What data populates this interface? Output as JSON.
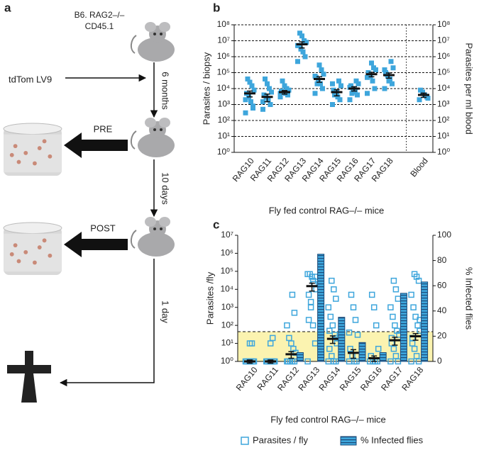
{
  "panels": [
    "a",
    "b",
    "c"
  ],
  "diagram": {
    "mouse_label": [
      "B6. RAG2–/–",
      "CD45.1"
    ],
    "infection": "tdTom LV9",
    "steps": [
      "6 months",
      "10 days",
      "1 day"
    ],
    "feeds": [
      "PRE",
      "POST"
    ]
  },
  "chart_data": [
    {
      "type": "strip",
      "y_label": "Parasites / biopsy",
      "y2_label": "Parasites per ml blood",
      "x_label": "Fly fed control RAG–/– mice",
      "categories": [
        "RAG10",
        "RAG11",
        "RAG12",
        "RAG13",
        "RAG14",
        "RAG15",
        "RAG16",
        "RAG17",
        "RAG18",
        "Blood"
      ],
      "points": [
        [
          300,
          800,
          1500,
          3000,
          5000,
          8000,
          15000,
          25000,
          40000,
          2000,
          600
        ],
        [
          500,
          1000,
          2000,
          3000,
          4000,
          6000,
          10000,
          20000,
          40000,
          1500
        ],
        [
          3000,
          4000,
          5000,
          6000,
          7000,
          8000,
          10000,
          15000,
          30000,
          5000
        ],
        [
          500000,
          1000000,
          2000000,
          3000000,
          5000000,
          8000000,
          10000000,
          20000000,
          30000000,
          5000000,
          1000000
        ],
        [
          5000,
          10000,
          20000,
          30000,
          50000,
          80000,
          150000,
          300000,
          20000,
          60000
        ],
        [
          1000,
          2000,
          3000,
          5000,
          8000,
          15000,
          30000,
          6000,
          4000,
          20000
        ],
        [
          2000,
          4000,
          6000,
          10000,
          15000,
          20000,
          30000,
          8000,
          5000,
          12000
        ],
        [
          5000,
          10000,
          30000,
          60000,
          100000,
          150000,
          200000,
          400000,
          80000,
          50000
        ],
        [
          10000,
          20000,
          40000,
          60000,
          100000,
          200000,
          500000,
          30000,
          80000,
          150000
        ],
        [
          2000,
          3000,
          4000,
          6000,
          8000,
          2500
        ]
      ],
      "means": [
        5000,
        3000,
        6000,
        6000000,
        40000,
        6000,
        10000,
        80000,
        70000,
        4000
      ],
      "errors": [
        2000,
        1500,
        1500,
        2500000,
        15000,
        2500,
        3000,
        25000,
        25000,
        1200
      ],
      "color": "#3ea6dc",
      "log_y": true,
      "log_y2": true,
      "grid": true,
      "ylim": [
        1,
        100000000
      ],
      "yticks": [
        {
          "value": 1,
          "label": "10⁰"
        },
        {
          "value": 10,
          "label": "10¹"
        },
        {
          "value": 100,
          "label": "10²"
        },
        {
          "value": 1000,
          "label": "10³"
        },
        {
          "value": 10000,
          "label": "10⁴"
        },
        {
          "value": 100000,
          "label": "10⁵"
        },
        {
          "value": 1000000,
          "label": "10⁶"
        },
        {
          "value": 10000000,
          "label": "10⁷"
        },
        {
          "value": 100000000,
          "label": "10⁸"
        }
      ],
      "y2lim": [
        1,
        100000000
      ],
      "y2ticks": [
        {
          "value": 1,
          "label": "10⁰"
        },
        {
          "value": 10,
          "label": "10¹"
        },
        {
          "value": 100,
          "label": "10²"
        },
        {
          "value": 1000,
          "label": "10³"
        },
        {
          "value": 10000,
          "label": "10⁴"
        },
        {
          "value": 100000,
          "label": "10⁵"
        },
        {
          "value": 1000000,
          "label": "10⁶"
        },
        {
          "value": 10000000,
          "label": "10⁷"
        },
        {
          "value": 100000000,
          "label": "10⁸"
        }
      ]
    },
    {
      "type": "strip_bar",
      "y_label": "Parasites /fly",
      "y2_label": "% Infected flies",
      "x_label": "Fly fed control RAG–/– mice",
      "categories": [
        "RAG10",
        "RAG11",
        "RAG12",
        "RAG13",
        "RAG14",
        "RAG15",
        "RAG16",
        "RAG17",
        "RAG18"
      ],
      "series": [
        {
          "name": "Parasites / fly",
          "color": "#3ea6dc",
          "points": [
            [
              1,
              1,
              1,
              1,
              1,
              1,
              10,
              10
            ],
            [
              1,
              1,
              1,
              1,
              1,
              1,
              20,
              10
            ],
            [
              1,
              1,
              1,
              1,
              1,
              3,
              5,
              10,
              20,
              100,
              500,
              5000
            ],
            [
              1,
              10,
              100,
              1000,
              5000,
              10000,
              20000,
              50000,
              70000,
              70000,
              50000,
              30000,
              2000,
              200
            ],
            [
              1,
              1,
              1,
              2,
              5,
              10,
              30,
              100,
              300,
              1000,
              3000,
              10000,
              30000,
              50,
              20
            ],
            [
              1,
              1,
              1,
              2,
              5,
              30,
              200,
              1000,
              5000,
              40
            ],
            [
              1,
              1,
              1,
              1,
              2,
              5,
              100,
              1000,
              5000
            ],
            [
              1,
              1,
              2,
              5,
              10,
              30,
              50,
              100,
              300,
              1000,
              3000,
              10000,
              30000,
              20
            ],
            [
              1,
              1,
              2,
              5,
              10,
              50,
              100,
              300,
              1000,
              5000,
              30000,
              50000,
              70000,
              20,
              200
            ]
          ],
          "means": [
            1,
            1,
            2.5,
            15000,
            18,
            3,
            1.5,
            15,
            25
          ],
          "errors": [
            0.2,
            0.2,
            1,
            7000,
            8,
            1.5,
            0.5,
            7,
            10
          ]
        },
        {
          "name": "% Infected flies",
          "color": "#3ea6dc",
          "stripe_color": "#1a4a7a",
          "axis": "y2",
          "values": [
            0,
            0,
            7,
            85,
            35,
            15,
            7,
            54,
            63
          ]
        }
      ],
      "log_y": true,
      "shaded_band": [
        1,
        45
      ],
      "band_color": "#fbf3b0",
      "ylim": [
        1,
        10000000
      ],
      "yticks": [
        {
          "value": 1,
          "label": "10⁰"
        },
        {
          "value": 10,
          "label": "10¹"
        },
        {
          "value": 100,
          "label": "10²"
        },
        {
          "value": 1000,
          "label": "10³"
        },
        {
          "value": 10000,
          "label": "10⁴"
        },
        {
          "value": 100000,
          "label": "10⁵"
        },
        {
          "value": 1000000,
          "label": "10⁶"
        },
        {
          "value": 10000000,
          "label": "10⁷"
        }
      ],
      "y2lim": [
        0,
        100
      ],
      "y2ticks": [
        0,
        20,
        40,
        60,
        80,
        100
      ]
    }
  ]
}
